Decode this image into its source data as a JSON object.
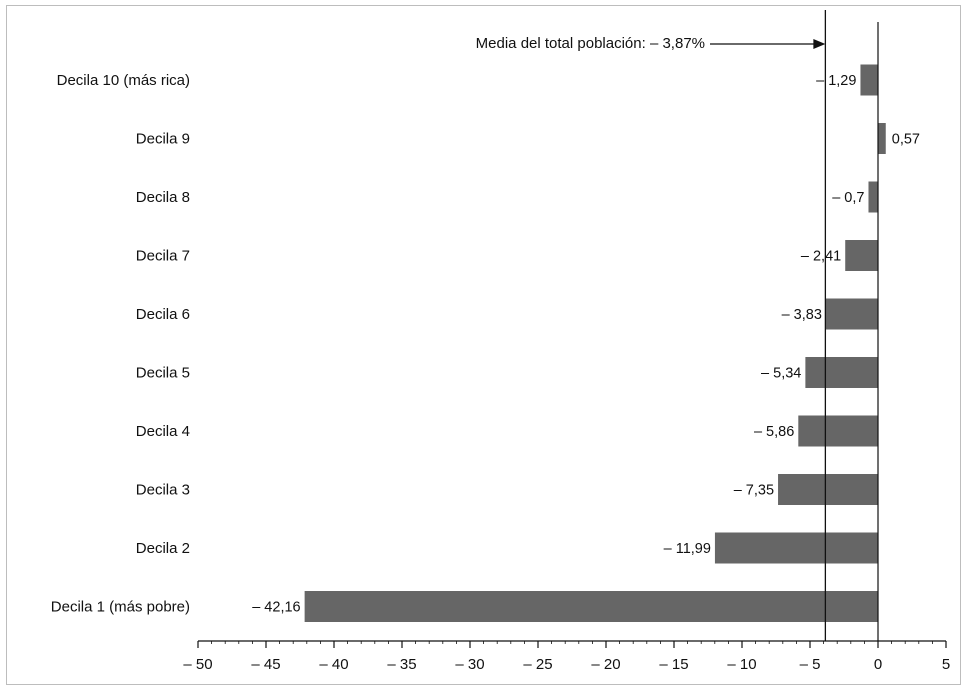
{
  "chart_data": {
    "type": "bar",
    "orientation": "horizontal",
    "categories": [
      "Decila 1 (más pobre)",
      "Decila 2",
      "Decila 3",
      "Decila 4",
      "Decila 5",
      "Decila 6",
      "Decila 7",
      "Decila 8",
      "Decila 9",
      "Decila 10 (más rica)"
    ],
    "values": [
      -42.16,
      -11.99,
      -7.35,
      -5.86,
      -5.34,
      -3.83,
      -2.41,
      -0.7,
      0.57,
      -1.29
    ],
    "value_labels": [
      "– 42,16",
      "– 11,99",
      "– 7,35",
      "– 5,86",
      "– 5,34",
      "– 3,83",
      "– 2,41",
      "– 0,7",
      "0,57",
      "– 1,29"
    ],
    "xlim": [
      -50,
      5
    ],
    "xticks": [
      -50,
      -45,
      -40,
      -35,
      -30,
      -25,
      -20,
      -15,
      -10,
      -5,
      0,
      5
    ],
    "xtick_labels": [
      "– 50",
      "– 45",
      "– 40",
      "– 35",
      "– 30",
      "– 25",
      "– 20",
      "– 15",
      "– 10",
      "– 5",
      "0",
      "5"
    ],
    "reference_line": {
      "value": -3.87,
      "label": "Media del total población: – 3,87%"
    },
    "title": "",
    "xlabel": "",
    "ylabel": "",
    "grid": false,
    "bar_color": "#666666"
  }
}
